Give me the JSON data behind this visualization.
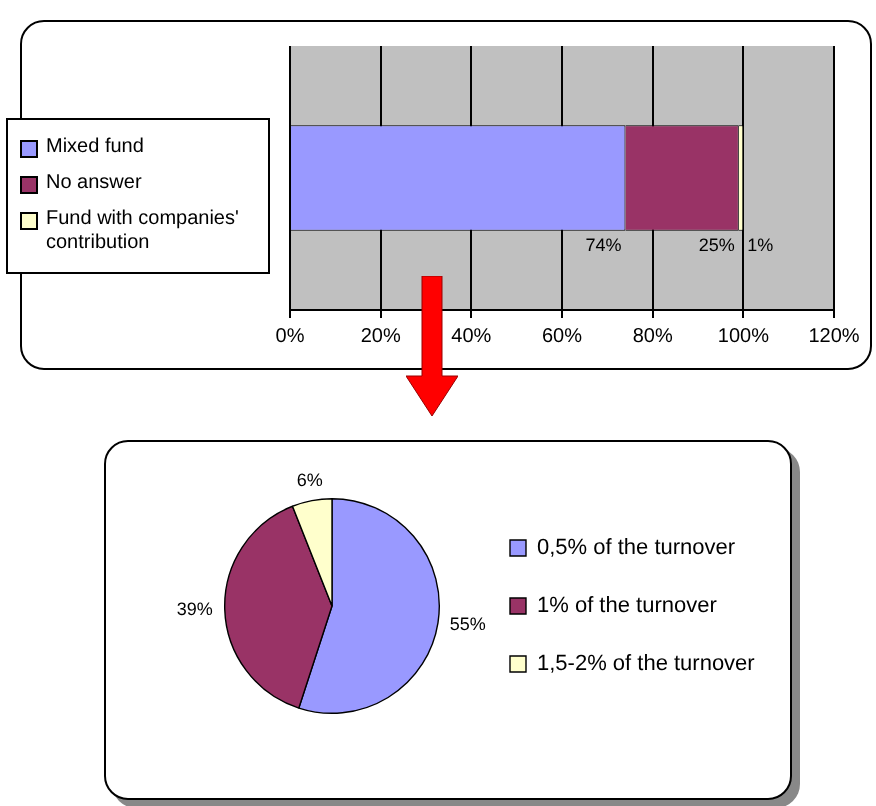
{
  "chart_data": [
    {
      "type": "bar",
      "orientation": "horizontal",
      "stacked": true,
      "categories": [
        null
      ],
      "series": [
        {
          "name": "Mixed fund",
          "color": "#9999ff",
          "values": [
            74
          ],
          "value_labels": [
            "74%"
          ]
        },
        {
          "name": "No answer",
          "color": "#993366",
          "values": [
            25
          ],
          "value_labels": [
            "25%"
          ]
        },
        {
          "name": "Fund with companies' contribution",
          "color": "#ffffcc",
          "values": [
            1
          ],
          "value_labels": [
            "1%"
          ]
        }
      ],
      "xlim": [
        0,
        120
      ],
      "xticks": [
        {
          "value": 0,
          "label": "0%"
        },
        {
          "value": 20,
          "label": "20%"
        },
        {
          "value": 40,
          "label": "40%"
        },
        {
          "value": 60,
          "label": "60%"
        },
        {
          "value": 80,
          "label": "80%"
        },
        {
          "value": 100,
          "label": "100%"
        },
        {
          "value": 120,
          "label": "120%"
        }
      ],
      "grid": "x",
      "legend": "left",
      "tick_labels": "x"
    },
    {
      "type": "pie",
      "categories": [
        "0,5% of the turnover",
        "1% of the turnover",
        "1,5-2% of the turnover"
      ],
      "values": [
        55,
        39,
        6
      ],
      "value_labels": [
        "55%",
        "39%",
        "6%"
      ],
      "colors": [
        "#9999ff",
        "#993366",
        "#ffffcc"
      ],
      "legend": "right"
    }
  ]
}
